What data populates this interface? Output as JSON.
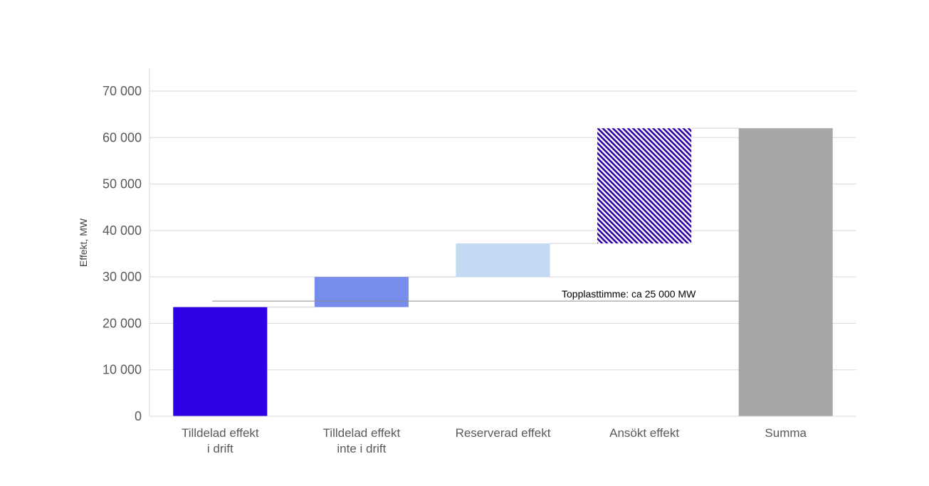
{
  "chart_data": {
    "type": "bar",
    "subtype": "waterfall",
    "ylabel": "Effekt, MW",
    "ylim": [
      0,
      70000
    ],
    "yticks": [
      0,
      10000,
      20000,
      30000,
      40000,
      50000,
      60000,
      70000
    ],
    "ytick_labels": [
      "0",
      "10 000",
      "20 000",
      "30 000",
      "40 000",
      "50 000",
      "60 000",
      "70 000"
    ],
    "grid": true,
    "categories": [
      [
        "Tilldelad effekt",
        "i drift"
      ],
      [
        "Tilldelad effekt",
        "inte i drift"
      ],
      [
        "Reserverad effekt"
      ],
      [
        "Ansökt effekt"
      ],
      [
        "Summa"
      ]
    ],
    "bars": [
      {
        "start": 0,
        "end": 23500,
        "color": "#2e00e6",
        "pattern": "solid"
      },
      {
        "start": 23500,
        "end": 30000,
        "color": "#778ded",
        "pattern": "solid"
      },
      {
        "start": 30000,
        "end": 37200,
        "color": "#c3d8f1",
        "pattern": "solid"
      },
      {
        "start": 37200,
        "end": 62000,
        "color": "#2e00a0",
        "pattern": "hatch"
      },
      {
        "start": 0,
        "end": 62000,
        "color": "#a6a6a6",
        "pattern": "solid"
      }
    ],
    "reference_line": {
      "value": 24800,
      "label": "Topplasttimme: ca 25 000 MW",
      "color": "#8c8c8c"
    }
  }
}
